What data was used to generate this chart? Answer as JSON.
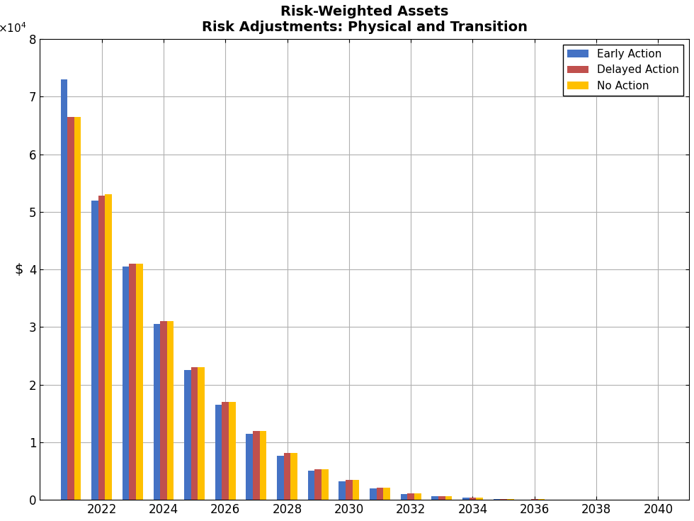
{
  "title_line1": "Risk-Weighted Assets",
  "title_line2": "Risk Adjustments: Physical and Transition",
  "ylabel": "$",
  "years": [
    2021,
    2022,
    2023,
    2024,
    2025,
    2026,
    2027,
    2028,
    2029,
    2030,
    2031,
    2032,
    2033,
    2034,
    2035,
    2036,
    2037,
    2038,
    2039,
    2040
  ],
  "early_action": [
    73000,
    52000,
    40500,
    30500,
    22500,
    16500,
    11500,
    7700,
    5100,
    3200,
    2000,
    1050,
    650,
    380,
    170,
    80,
    30,
    15,
    8,
    5
  ],
  "delayed_action": [
    66500,
    52800,
    41000,
    31000,
    23000,
    17000,
    12000,
    8100,
    5300,
    3500,
    2100,
    1100,
    680,
    400,
    180,
    90,
    35,
    18,
    10,
    6
  ],
  "no_action": [
    66500,
    53000,
    41000,
    31000,
    23000,
    17000,
    12000,
    8100,
    5300,
    3500,
    2100,
    1100,
    680,
    400,
    180,
    90,
    35,
    18,
    10,
    6
  ],
  "colors": {
    "early_action": "#4472C4",
    "delayed_action": "#C0504D",
    "no_action": "#FFC000"
  },
  "legend_labels": [
    "Early Action",
    "Delayed Action",
    "No Action"
  ],
  "ylim": [
    0,
    80000
  ],
  "ytick_values": [
    0,
    10000,
    20000,
    30000,
    40000,
    50000,
    60000,
    70000,
    80000
  ],
  "xtick_values": [
    2022,
    2024,
    2026,
    2028,
    2030,
    2032,
    2034,
    2036,
    2038,
    2040
  ],
  "bar_width": 0.22,
  "xlim": [
    2020.0,
    2041.0
  ],
  "background_color": "#ffffff",
  "grid_color": "#b0b0b0",
  "title_fontsize": 14,
  "axis_fontsize": 12,
  "legend_fontsize": 11
}
